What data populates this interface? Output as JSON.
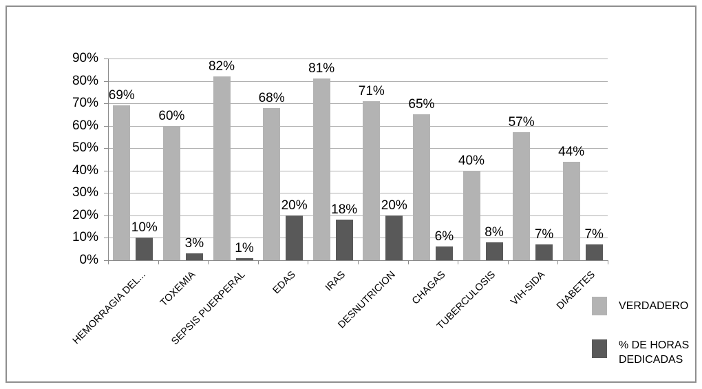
{
  "frame": {
    "background": "#ffffff",
    "border_color": "#8e8e8e"
  },
  "chart_data": {
    "type": "bar",
    "title": "",
    "xlabel": "",
    "ylabel": "",
    "categories": [
      "HEMORRAGIA DEL...",
      "TOXEMIA",
      "SEPSIS PUERPERAL",
      "EDAS",
      "IRAS",
      "DESNUTRICION",
      "CHAGAS",
      "TUBERCULOSIS",
      "VIH-SIDA",
      "DIABETES"
    ],
    "series": [
      {
        "name": "VERDADERO",
        "color": "#b3b3b3",
        "values": [
          69,
          60,
          82,
          68,
          81,
          71,
          65,
          40,
          57,
          44
        ],
        "labels": [
          "69%",
          "60%",
          "82%",
          "68%",
          "81%",
          "71%",
          "65%",
          "40%",
          "57%",
          "44%"
        ]
      },
      {
        "name": "% DE HORAS DEDICADAS",
        "color": "#595959",
        "values": [
          10,
          3,
          1,
          20,
          18,
          20,
          6,
          8,
          7,
          7
        ],
        "labels": [
          "10%",
          "3%",
          "1%",
          "20%",
          "18%",
          "20%",
          "6%",
          "8%",
          "7%",
          "7%"
        ]
      }
    ],
    "y_ticks": [
      "0%",
      "10%",
      "20%",
      "30%",
      "40%",
      "50%",
      "60%",
      "70%",
      "80%",
      "90%"
    ],
    "ylim": [
      0,
      90
    ],
    "grid": true,
    "legend_position": "right-bottom"
  }
}
